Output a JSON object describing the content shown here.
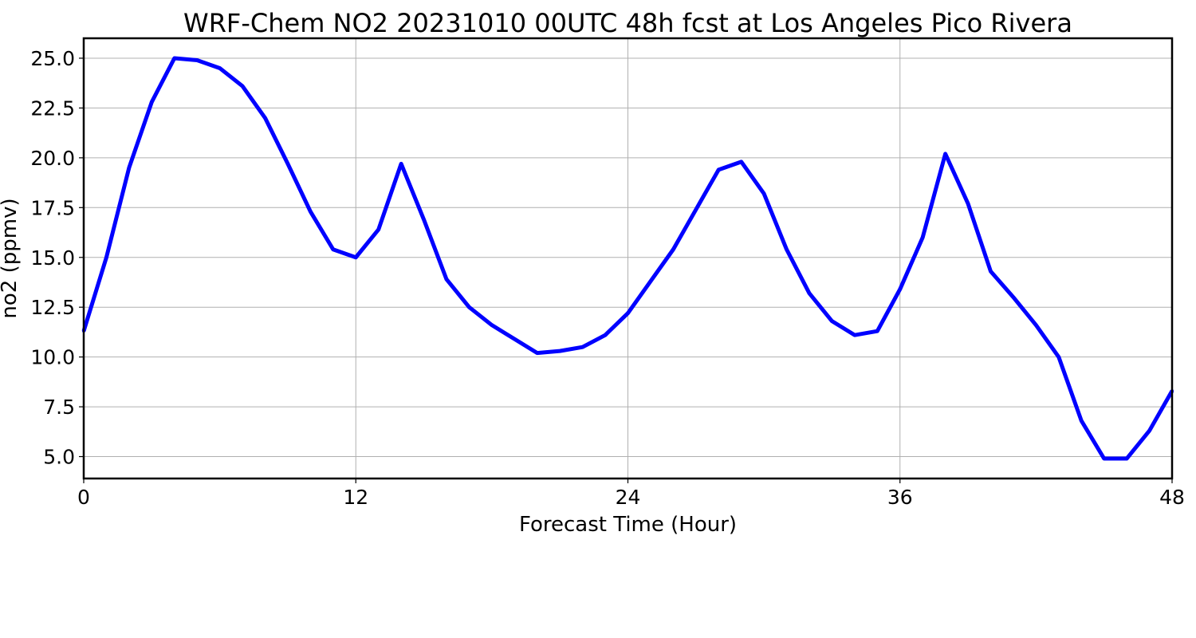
{
  "chart_data": {
    "type": "line",
    "title": "WRF-Chem NO2  20231010 00UTC 48h fcst at Los Angeles Pico Rivera",
    "xlabel": "Forecast Time (Hour)",
    "ylabel": "no2  (ppmv)",
    "xlim": [
      0,
      48
    ],
    "ylim": [
      3.9,
      26.0
    ],
    "xticks": [
      0,
      12,
      24,
      36,
      48
    ],
    "xtick_labels": [
      "0",
      "12",
      "24",
      "36",
      "48"
    ],
    "yticks": [
      5.0,
      7.5,
      10.0,
      12.5,
      15.0,
      17.5,
      20.0,
      22.5,
      25.0
    ],
    "ytick_labels": [
      "5.0",
      "7.5",
      "10.0",
      "12.5",
      "15.0",
      "17.5",
      "20.0",
      "22.5",
      "25.0"
    ],
    "grid": true,
    "series": [
      {
        "color": "#0000ff",
        "x": [
          0,
          1,
          2,
          3,
          4,
          5,
          6,
          7,
          8,
          9,
          10,
          11,
          12,
          13,
          14,
          15,
          16,
          17,
          18,
          19,
          20,
          21,
          22,
          23,
          24,
          25,
          26,
          27,
          28,
          29,
          30,
          31,
          32,
          33,
          34,
          35,
          36,
          37,
          38,
          39,
          40,
          41,
          42,
          43,
          44,
          45,
          46,
          47,
          48
        ],
        "y": [
          11.3,
          15.0,
          19.5,
          22.8,
          25.0,
          24.9,
          24.5,
          23.6,
          22.0,
          19.7,
          17.3,
          15.4,
          15.0,
          16.4,
          19.7,
          16.9,
          13.9,
          12.5,
          11.6,
          10.9,
          10.2,
          10.3,
          10.5,
          11.1,
          12.2,
          13.8,
          15.4,
          17.4,
          19.4,
          19.8,
          18.2,
          15.4,
          13.2,
          11.8,
          11.1,
          11.3,
          13.4,
          16.0,
          20.2,
          17.7,
          14.3,
          13.0,
          11.6,
          10.0,
          6.8,
          4.9,
          4.9,
          6.3,
          8.3
        ]
      }
    ]
  }
}
